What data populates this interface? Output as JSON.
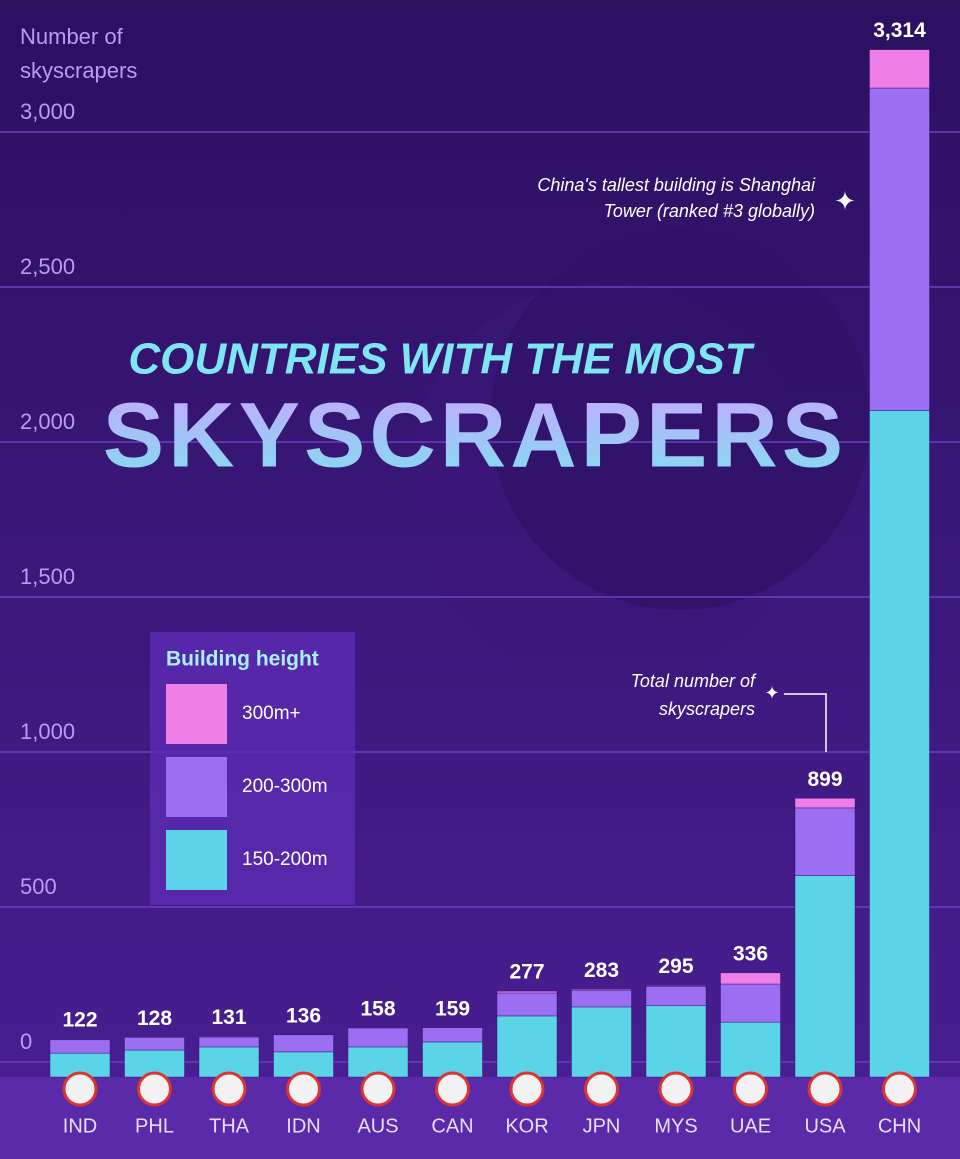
{
  "chart_data": {
    "type": "stacked-bar",
    "title": "COUNTRIES WITH THE MOST",
    "subtitle": "SKYSCRAPERS",
    "y_axis_label": [
      "Number of",
      "skyscrapers"
    ],
    "categories": [
      "IND",
      "PHL",
      "THA",
      "IDN",
      "AUS",
      "CAN",
      "KOR",
      "JPN",
      "MYS",
      "UAE",
      "USA",
      "CHN"
    ],
    "series": [
      {
        "name": "150-200m",
        "color": "#5bd4e8",
        "values": [
          77,
          87,
          97,
          81,
          97,
          113,
          197,
          226,
          230,
          177,
          650,
          2150
        ]
      },
      {
        "name": "200-300m",
        "color": "#9c6ef2",
        "values": [
          43,
          41,
          32,
          55,
          61,
          46,
          74,
          54,
          62,
          123,
          218,
          1040
        ]
      },
      {
        "name": "300m+",
        "color": "#f07ee8",
        "values": [
          2,
          0,
          2,
          0,
          0,
          0,
          6,
          3,
          3,
          36,
          31,
          124
        ]
      }
    ],
    "totals": [
      122,
      128,
      131,
      136,
      158,
      159,
      277,
      283,
      295,
      336,
      899,
      3314
    ],
    "total_labels": [
      "122",
      "128",
      "131",
      "136",
      "158",
      "159",
      "277",
      "283",
      "295",
      "336",
      "899",
      "3,314"
    ],
    "legend_title": "Building height",
    "annotations": [
      {
        "lines": [
          "China's tallest building is Shanghai",
          "Tower (ranked #3 globally)"
        ]
      },
      {
        "lines": [
          "Total number of",
          "skyscrapers"
        ]
      }
    ],
    "ylim": [
      0,
      3474
    ],
    "yticks": [
      0,
      500,
      {
        "value": 1000,
        "label": "1,000"
      },
      {
        "value": 1500,
        "label": "1,500"
      },
      {
        "value": 2000,
        "label": "2,000"
      },
      {
        "value": 2500,
        "label": "2,500"
      },
      {
        "value": 3000,
        "label": "3,000"
      }
    ],
    "grid": true
  }
}
